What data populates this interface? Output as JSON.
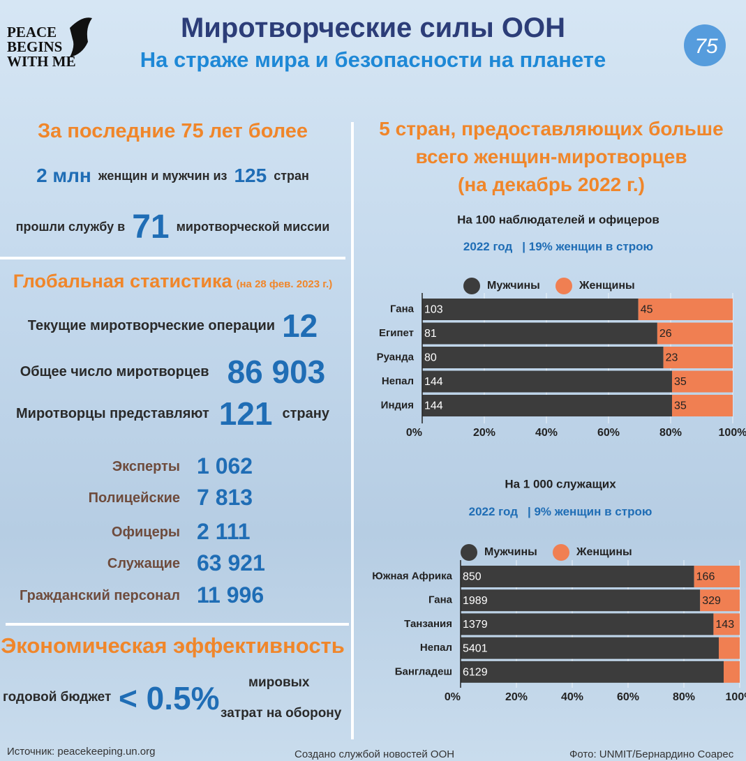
{
  "header": {
    "title": "Миротворческие силы ООН",
    "subtitle": "На страже мира и безопасности на планете",
    "logo_text": [
      "PEACE",
      "BEGINS",
      "WITH ME"
    ],
    "anniversary": "75"
  },
  "history": {
    "heading": "За последние 75 лет более",
    "line1": [
      "2 млн",
      "женщин и мужчин из",
      "125",
      "стран"
    ],
    "line2": [
      "прошли службу в",
      "71",
      "миротворческой миссии"
    ]
  },
  "global": {
    "heading": "Глобальная статистика",
    "date": "(на 28 фев. 2023 г.)",
    "stats": [
      [
        "Текущие миротворческие операции",
        "12"
      ],
      [
        "Общее число миротворцев",
        "86 903"
      ],
      [
        "Миротворцы представляют",
        "121",
        "страну"
      ]
    ],
    "breakdown": [
      [
        "Эксперты",
        "1 062"
      ],
      [
        "Полицейские",
        "7 813"
      ],
      [
        "Офицеры",
        "2 111"
      ],
      [
        "Служащие",
        "63 921"
      ],
      [
        "Гражданский персонал",
        "11 996"
      ]
    ]
  },
  "economy": {
    "heading": "Экономическая эффективность",
    "budget_label": "годовой бюджет",
    "value": "< 0.5%",
    "tail": [
      "мировых",
      "затрат на оборону"
    ]
  },
  "right_heading": [
    "5 стран, предоставляющих больше",
    "всего женщин-миротворцев",
    "(на декабрь 2022 г.)"
  ],
  "chart_data": [
    {
      "type": "bar",
      "orientation": "horizontal",
      "stacking": "percent",
      "subtitle": "На 100 наблюдателей и офицеров",
      "note": [
        "2022 год",
        "| 19% женщин в строю"
      ],
      "categories": [
        "Гана",
        "Египет",
        "Руанда",
        "Непал",
        "Индия"
      ],
      "series": [
        {
          "name": "Мужчины",
          "color": "#3c3c3c",
          "values": [
            103,
            81,
            80,
            144,
            144
          ]
        },
        {
          "name": "Женщины",
          "color": "#f07f52",
          "values": [
            45,
            26,
            23,
            35,
            35
          ]
        }
      ],
      "xlim": [
        0,
        100
      ],
      "xticks": [
        {
          "value": 0,
          "label": "0%"
        },
        {
          "value": 20,
          "label": "20%"
        },
        {
          "value": 40,
          "label": "40%"
        },
        {
          "value": 60,
          "label": "60%"
        },
        {
          "value": 80,
          "label": "80%"
        },
        {
          "value": 100,
          "label": "100%"
        }
      ],
      "grid": true
    },
    {
      "type": "bar",
      "orientation": "horizontal",
      "stacking": "percent",
      "subtitle": "На 1 000 служащих",
      "note": [
        "2022 год",
        "| 9% женщин в строю"
      ],
      "categories": [
        "Южная Африка",
        "Гана",
        "Танзания",
        "Непал",
        "Бангладеш"
      ],
      "series": [
        {
          "name": "Мужчины",
          "color": "#3c3c3c",
          "values": [
            850,
            1989,
            1379,
            5401,
            6129
          ]
        },
        {
          "name": "Женщины",
          "color": "#f07f52",
          "values": [
            166,
            329,
            143,
            438,
            374
          ]
        }
      ],
      "xlim": [
        0,
        100
      ],
      "xticks": [
        {
          "value": 0,
          "label": "0%"
        },
        {
          "value": 20,
          "label": "20%"
        },
        {
          "value": 40,
          "label": "40%"
        },
        {
          "value": 60,
          "label": "60%"
        },
        {
          "value": 80,
          "label": "80%"
        },
        {
          "value": 100,
          "label": "100%"
        }
      ],
      "grid": true
    }
  ],
  "footer": {
    "source": "Источник: peacekeeping.un.org",
    "credit": "Создано службой новостей ООН",
    "photo": "Фото: UNMIT/Бернардино Соарес"
  }
}
